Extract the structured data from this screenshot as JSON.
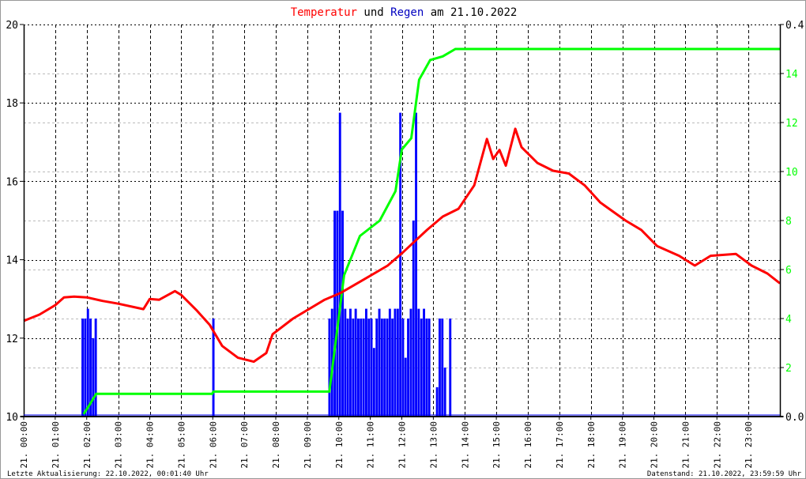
{
  "chart_data": {
    "type": "line",
    "title": {
      "part1": "Temperatur",
      "part2": " und ",
      "part3": "Regen",
      "part4": " am 21.10.2022"
    },
    "colors": {
      "temperature": "#ff0000",
      "rain": "#0000ff",
      "rain_sum": "#00ff00",
      "title_temp": "#ff0000",
      "title_rain": "#0000c0"
    },
    "x_ticks": [
      "21. 00:00",
      "21. 01:00",
      "21. 02:00",
      "21. 03:00",
      "21. 04:00",
      "21. 05:00",
      "21. 06:00",
      "21. 07:00",
      "21. 08:00",
      "21. 09:00",
      "21. 10:00",
      "21. 11:00",
      "21. 12:00",
      "21. 13:00",
      "21. 14:00",
      "21. 15:00",
      "21. 16:00",
      "21. 17:00",
      "21. 18:00",
      "21. 19:00",
      "21. 20:00",
      "21. 21:00",
      "21. 22:00",
      "21. 23:00"
    ],
    "xlim_hours": [
      0,
      24
    ],
    "y_left": {
      "ylim": [
        10,
        20
      ],
      "ticks": [
        "10",
        "12",
        "14",
        "16",
        "18",
        "20"
      ]
    },
    "y_right_rain": {
      "ylim": [
        0.0,
        0.4
      ],
      "ticks": [
        "0.0",
        "0.4"
      ]
    },
    "y_right_sum": {
      "ylim": [
        0,
        16
      ],
      "ticks": [
        "2",
        "4",
        "6",
        "8",
        "10",
        "12",
        "14"
      ]
    },
    "grid": true,
    "temperature": [
      [
        0,
        12.44
      ],
      [
        0.5,
        12.6
      ],
      [
        1,
        12.84
      ],
      [
        1.28,
        13.04
      ],
      [
        1.6,
        13.06
      ],
      [
        2,
        13.04
      ],
      [
        2.5,
        12.95
      ],
      [
        3,
        12.88
      ],
      [
        3.8,
        12.74
      ],
      [
        4,
        13.0
      ],
      [
        4.3,
        12.98
      ],
      [
        4.8,
        13.2
      ],
      [
        5,
        13.1
      ],
      [
        5.5,
        12.7
      ],
      [
        5.9,
        12.34
      ],
      [
        6.3,
        11.8
      ],
      [
        6.8,
        11.5
      ],
      [
        7.3,
        11.4
      ],
      [
        7.7,
        11.62
      ],
      [
        7.9,
        12.1
      ],
      [
        8.55,
        12.5
      ],
      [
        9.55,
        12.98
      ],
      [
        10.05,
        13.15
      ],
      [
        10.8,
        13.5
      ],
      [
        11.55,
        13.85
      ],
      [
        12.05,
        14.2
      ],
      [
        12.8,
        14.76
      ],
      [
        13.3,
        15.1
      ],
      [
        13.8,
        15.3
      ],
      [
        14.3,
        15.9
      ],
      [
        14.7,
        17.08
      ],
      [
        14.9,
        16.57
      ],
      [
        15.1,
        16.8
      ],
      [
        15.3,
        16.4
      ],
      [
        15.6,
        17.34
      ],
      [
        15.8,
        16.87
      ],
      [
        16.3,
        16.47
      ],
      [
        16.8,
        16.27
      ],
      [
        17.3,
        16.2
      ],
      [
        17.8,
        15.9
      ],
      [
        18.3,
        15.46
      ],
      [
        19.1,
        15.0
      ],
      [
        19.6,
        14.76
      ],
      [
        20.1,
        14.35
      ],
      [
        20.8,
        14.1
      ],
      [
        21.3,
        13.85
      ],
      [
        21.8,
        14.1
      ],
      [
        22.6,
        14.15
      ],
      [
        23.1,
        13.85
      ],
      [
        23.6,
        13.65
      ],
      [
        24,
        13.4
      ]
    ],
    "rain_sum": [
      [
        1.9,
        0.1
      ],
      [
        2.1,
        0.5
      ],
      [
        2.3,
        0.93
      ],
      [
        5.98,
        0.93
      ],
      [
        6.02,
        1.02
      ],
      [
        9.7,
        1.02
      ],
      [
        10.17,
        5.77
      ],
      [
        10.67,
        7.37
      ],
      [
        11.3,
        8.0
      ],
      [
        11.8,
        9.2
      ],
      [
        12.0,
        10.9
      ],
      [
        12.3,
        11.36
      ],
      [
        12.55,
        13.75
      ],
      [
        12.9,
        14.55
      ],
      [
        13.3,
        14.7
      ],
      [
        13.7,
        15.0
      ],
      [
        24,
        15.0
      ]
    ],
    "rain": [
      [
        "01:50",
        0.1
      ],
      [
        "01:55",
        0.1
      ],
      [
        "02:00",
        0.11
      ],
      [
        "02:05",
        0.1
      ],
      [
        "02:10",
        0.08
      ],
      [
        "02:15",
        0.1
      ],
      [
        "05:59",
        0.1
      ],
      [
        "09:40",
        0.1
      ],
      [
        "09:45",
        0.11
      ],
      [
        "09:50",
        0.21
      ],
      [
        "09:55",
        0.21
      ],
      [
        "10:00",
        0.31
      ],
      [
        "10:05",
        0.21
      ],
      [
        "10:10",
        0.11
      ],
      [
        "10:15",
        0.1
      ],
      [
        "10:20",
        0.11
      ],
      [
        "10:25",
        0.1
      ],
      [
        "10:30",
        0.11
      ],
      [
        "10:35",
        0.1
      ],
      [
        "10:40",
        0.1
      ],
      [
        "10:45",
        0.1
      ],
      [
        "10:50",
        0.11
      ],
      [
        "10:55",
        0.1
      ],
      [
        "11:00",
        0.1
      ],
      [
        "11:05",
        0.07
      ],
      [
        "11:10",
        0.1
      ],
      [
        "11:15",
        0.11
      ],
      [
        "11:20",
        0.1
      ],
      [
        "11:25",
        0.1
      ],
      [
        "11:30",
        0.1
      ],
      [
        "11:35",
        0.11
      ],
      [
        "11:40",
        0.1
      ],
      [
        "11:45",
        0.11
      ],
      [
        "11:50",
        0.11
      ],
      [
        "11:55",
        0.31
      ],
      [
        "12:00",
        0.1
      ],
      [
        "12:05",
        0.06
      ],
      [
        "12:10",
        0.1
      ],
      [
        "12:15",
        0.11
      ],
      [
        "12:20",
        0.2
      ],
      [
        "12:25",
        0.31
      ],
      [
        "12:30",
        0.11
      ],
      [
        "12:35",
        0.1
      ],
      [
        "12:40",
        0.11
      ],
      [
        "12:45",
        0.1
      ],
      [
        "12:50",
        0.1
      ],
      [
        "13:05",
        0.03
      ],
      [
        "13:10",
        0.1
      ],
      [
        "13:15",
        0.1
      ],
      [
        "13:20",
        0.05
      ],
      [
        "13:30",
        0.1
      ]
    ]
  },
  "footer": {
    "left": "Letzte Aktualisierung: 22.10.2022, 00:01:40 Uhr",
    "right": "Datenstand: 21.10.2022, 23:59:59 Uhr"
  }
}
